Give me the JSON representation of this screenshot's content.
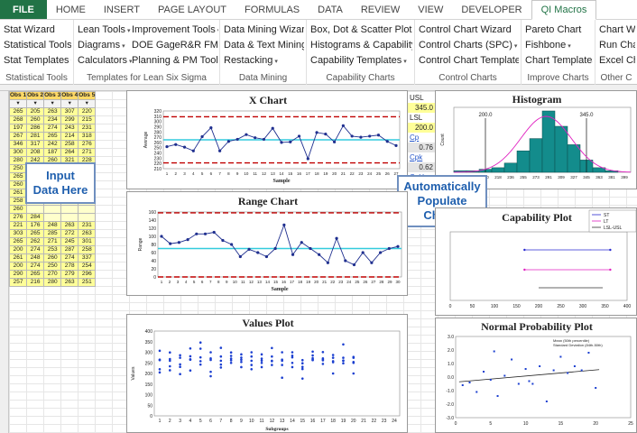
{
  "tabs": [
    {
      "label": "FILE",
      "kind": "file"
    },
    {
      "label": "HOME",
      "kind": ""
    },
    {
      "label": "INSERT",
      "kind": ""
    },
    {
      "label": "PAGE LAYOUT",
      "kind": ""
    },
    {
      "label": "FORMULAS",
      "kind": ""
    },
    {
      "label": "DATA",
      "kind": ""
    },
    {
      "label": "REVIEW",
      "kind": ""
    },
    {
      "label": "VIEW",
      "kind": ""
    },
    {
      "label": "DEVELOPER",
      "kind": ""
    },
    {
      "label": "QI Macros",
      "kind": "active"
    }
  ],
  "ribbon": {
    "groups": [
      {
        "label": "Statistical Tools",
        "items": [
          "Stat Wizard",
          "Statistical Tools",
          "Stat Templates"
        ],
        "dd": [
          false,
          true,
          true
        ]
      },
      {
        "label": "Templates for Lean Six Sigma",
        "items": [
          "Lean Tools",
          "Diagrams",
          "Calculators"
        ],
        "items2": [
          "Improvement Tools",
          "DOE GageR&R FMEA",
          "Planning & PM Tools"
        ],
        "dd": [
          true,
          true,
          true
        ]
      },
      {
        "label": "Data Mining",
        "items": [
          "Data Mining Wizard",
          "Data & Text Mining",
          "Restacking"
        ],
        "dd": [
          false,
          true,
          true
        ]
      },
      {
        "label": "Capability Charts",
        "items": [
          "Box, Dot & Scatter Plot",
          "Histograms & Capability",
          "Capability Templates"
        ],
        "dd": [
          true,
          true,
          true
        ]
      },
      {
        "label": "Control Charts",
        "items": [
          "Control Chart Wizard",
          "Control Charts (SPC)",
          "Control Chart Templates"
        ],
        "dd": [
          false,
          true,
          true
        ]
      },
      {
        "label": "Improve Charts",
        "items": [
          "Pareto Chart",
          "Fishbone",
          "Chart Templates"
        ],
        "dd": [
          false,
          true,
          true
        ]
      },
      {
        "label": "Other C",
        "items": [
          "Chart W",
          "Run Cha",
          "Excel Ch"
        ],
        "dd": [
          false,
          false,
          false
        ]
      }
    ]
  },
  "table": {
    "headers": [
      "Obs 1",
      "Obs 2",
      "Obs 3",
      "Obs 4",
      "Obs 5"
    ],
    "rows": [
      [
        "265",
        "205",
        "263",
        "307",
        "220"
      ],
      [
        "268",
        "260",
        "234",
        "299",
        "215"
      ],
      [
        "197",
        "286",
        "274",
        "243",
        "231"
      ],
      [
        "267",
        "281",
        "265",
        "214",
        "318"
      ],
      [
        "346",
        "317",
        "242",
        "258",
        "276"
      ],
      [
        "300",
        "208",
        "187",
        "264",
        "271"
      ],
      [
        "280",
        "242",
        "260",
        "321",
        "228"
      ],
      [
        "250",
        "299",
        "",
        "",
        ""
      ],
      [
        "265",
        "254",
        "",
        "",
        ""
      ],
      [
        "260",
        "",
        "",
        "",
        ""
      ],
      [
        "261",
        "",
        "",
        "",
        ""
      ],
      [
        "258",
        "",
        "",
        "",
        ""
      ],
      [
        "260",
        "",
        "",
        "",
        ""
      ],
      [
        "276",
        "284",
        "",
        "",
        ""
      ],
      [
        "221",
        "176",
        "248",
        "263",
        "231"
      ],
      [
        "303",
        "265",
        "285",
        "272",
        "263"
      ],
      [
        "265",
        "262",
        "271",
        "245",
        "301"
      ],
      [
        "200",
        "274",
        "253",
        "287",
        "258"
      ],
      [
        "261",
        "248",
        "260",
        "274",
        "337"
      ],
      [
        "200",
        "274",
        "250",
        "278",
        "254"
      ],
      [
        "290",
        "265",
        "270",
        "279",
        "296"
      ],
      [
        "257",
        "216",
        "280",
        "263",
        "251"
      ]
    ]
  },
  "callouts": {
    "input": "Input\nData Here",
    "auto": "Automatically\nPopulate\nCharts"
  },
  "stats": {
    "usl_label": "USL",
    "usl_value": "345.0",
    "lsl_label": "LSL",
    "lsl_value": "200.0",
    "cp_label": "Cp",
    "cp_value": "0.76",
    "cpk_label": "Cpk",
    "cpk_value": "0.62",
    "cpu_label": "CpU"
  },
  "xchart": {
    "title": "X Chart",
    "ylabel": "Average",
    "xlabel": "Sample",
    "yticks": [
      "210",
      "220",
      "230",
      "240",
      "250",
      "260",
      "270",
      "280",
      "290",
      "300",
      "310",
      "320"
    ],
    "ymin": 210,
    "ymax": 320,
    "ucl": 309,
    "lcl": 221,
    "center": 265,
    "values": [
      252,
      256,
      251,
      244,
      271,
      288,
      244,
      262,
      266,
      275,
      269,
      266,
      287,
      260,
      261,
      272,
      229,
      279,
      276,
      261,
      292,
      272,
      270,
      272,
      274,
      262,
      254
    ],
    "xticks": [
      "1",
      "2",
      "3",
      "4",
      "5",
      "6",
      "7",
      "8",
      "9",
      "10",
      "11",
      "12",
      "13",
      "14",
      "15",
      "16",
      "17",
      "18",
      "19",
      "20",
      "21",
      "22",
      "23",
      "24",
      "25",
      "26",
      "27"
    ]
  },
  "rangechart": {
    "title": "Range Chart",
    "ylabel": "Range",
    "xlabel": "Sample",
    "yticks": [
      "0",
      "20",
      "40",
      "60",
      "80",
      "100",
      "120",
      "140",
      "160"
    ],
    "ymin": 0,
    "ymax": 160,
    "ucl": 158,
    "center": 70,
    "values": [
      100,
      82,
      85,
      92,
      106,
      106,
      110,
      90,
      80,
      50,
      68,
      60,
      50,
      70,
      128,
      55,
      85,
      70,
      55,
      35,
      95,
      40,
      30,
      60,
      35,
      60,
      70,
      75
    ],
    "xticks": [
      "1",
      "2",
      "3",
      "4",
      "5",
      "6",
      "7",
      "8",
      "9",
      "10",
      "11",
      "12",
      "13",
      "14",
      "15",
      "16",
      "17",
      "18",
      "19",
      "20",
      "21",
      "22",
      "23",
      "24",
      "25",
      "26",
      "27",
      "28",
      "29",
      "30"
    ]
  },
  "valuesplot": {
    "title": "Values Plot",
    "ylabel": "Values",
    "xlabel": "Subgroups",
    "yticks": [
      "0",
      "50",
      "100",
      "150",
      "200",
      "250",
      "300",
      "350",
      "400"
    ],
    "ymin": 0,
    "ymax": 400,
    "xticks": [
      "1",
      "2",
      "3",
      "4",
      "5",
      "6",
      "7",
      "8",
      "9",
      "10",
      "11",
      "12",
      "13",
      "14",
      "15",
      "16",
      "17",
      "18",
      "19",
      "20",
      "21",
      "22",
      "23",
      "24"
    ],
    "groups": [
      [
        265,
        205,
        263,
        307,
        220
      ],
      [
        268,
        260,
        234,
        299,
        215
      ],
      [
        197,
        286,
        274,
        243,
        231
      ],
      [
        267,
        281,
        265,
        214,
        318
      ],
      [
        346,
        317,
        242,
        258,
        276
      ],
      [
        300,
        208,
        187,
        264,
        271
      ],
      [
        280,
        242,
        260,
        321,
        228
      ],
      [
        250,
        299,
        262,
        270,
        283
      ],
      [
        265,
        254,
        230,
        290,
        275
      ],
      [
        260,
        240,
        300,
        220,
        280
      ],
      [
        261,
        290,
        270,
        250,
        230
      ],
      [
        258,
        320,
        260,
        240,
        280
      ],
      [
        260,
        180,
        240,
        300,
        265
      ],
      [
        276,
        284,
        250,
        230,
        300
      ],
      [
        221,
        176,
        248,
        263,
        231
      ],
      [
        303,
        265,
        285,
        272,
        263
      ],
      [
        265,
        262,
        271,
        245,
        301
      ],
      [
        200,
        274,
        253,
        287,
        258
      ],
      [
        261,
        248,
        260,
        274,
        337
      ],
      [
        200,
        274,
        250,
        278,
        254
      ]
    ]
  },
  "histogram": {
    "title": "Histogram",
    "ylabel": "Count",
    "lsl_label": "200.0",
    "usl_label": "345.0",
    "bins": [
      "164",
      "182",
      "200",
      "218",
      "236",
      "255",
      "273",
      "291",
      "309",
      "327",
      "345",
      "363",
      "381",
      "399"
    ],
    "counts": [
      1,
      1,
      2,
      3,
      6,
      14,
      22,
      40,
      30,
      18,
      8,
      3,
      1,
      0
    ]
  },
  "capability": {
    "title": "Capability Plot",
    "legend": [
      "ST",
      "LT",
      "LSL-USL"
    ],
    "xticks": [
      "0",
      "50",
      "100",
      "150",
      "200",
      "250",
      "300",
      "350",
      "400"
    ]
  },
  "normalplot": {
    "title": "Normal Probability Plot",
    "legend1": "Mean (50th percentile)",
    "legend2": "Standard Deviation (84th-50th)",
    "yticks": [
      "-3.0",
      "-2.0",
      "-1.0",
      "0.0",
      "1.0",
      "2.0",
      "3.0"
    ],
    "xticks": [
      "0",
      "5",
      "10",
      "15",
      "20",
      "25"
    ],
    "points": [
      [
        1,
        -0.6
      ],
      [
        2,
        -0.4
      ],
      [
        3,
        -1.1
      ],
      [
        4,
        0.4
      ],
      [
        5,
        -0.2
      ],
      [
        5.5,
        1.9
      ],
      [
        6,
        -1.4
      ],
      [
        7,
        0.1
      ],
      [
        8,
        1.3
      ],
      [
        9,
        -0.5
      ],
      [
        10,
        0.6
      ],
      [
        10.5,
        -0.3
      ],
      [
        11,
        -0.5
      ],
      [
        12,
        0.8
      ],
      [
        13,
        -1.8
      ],
      [
        14,
        0.5
      ],
      [
        15,
        1.5
      ],
      [
        16,
        0.3
      ],
      [
        17,
        0.8
      ],
      [
        18,
        0.5
      ],
      [
        19,
        1.8
      ],
      [
        20,
        -0.8
      ]
    ]
  }
}
